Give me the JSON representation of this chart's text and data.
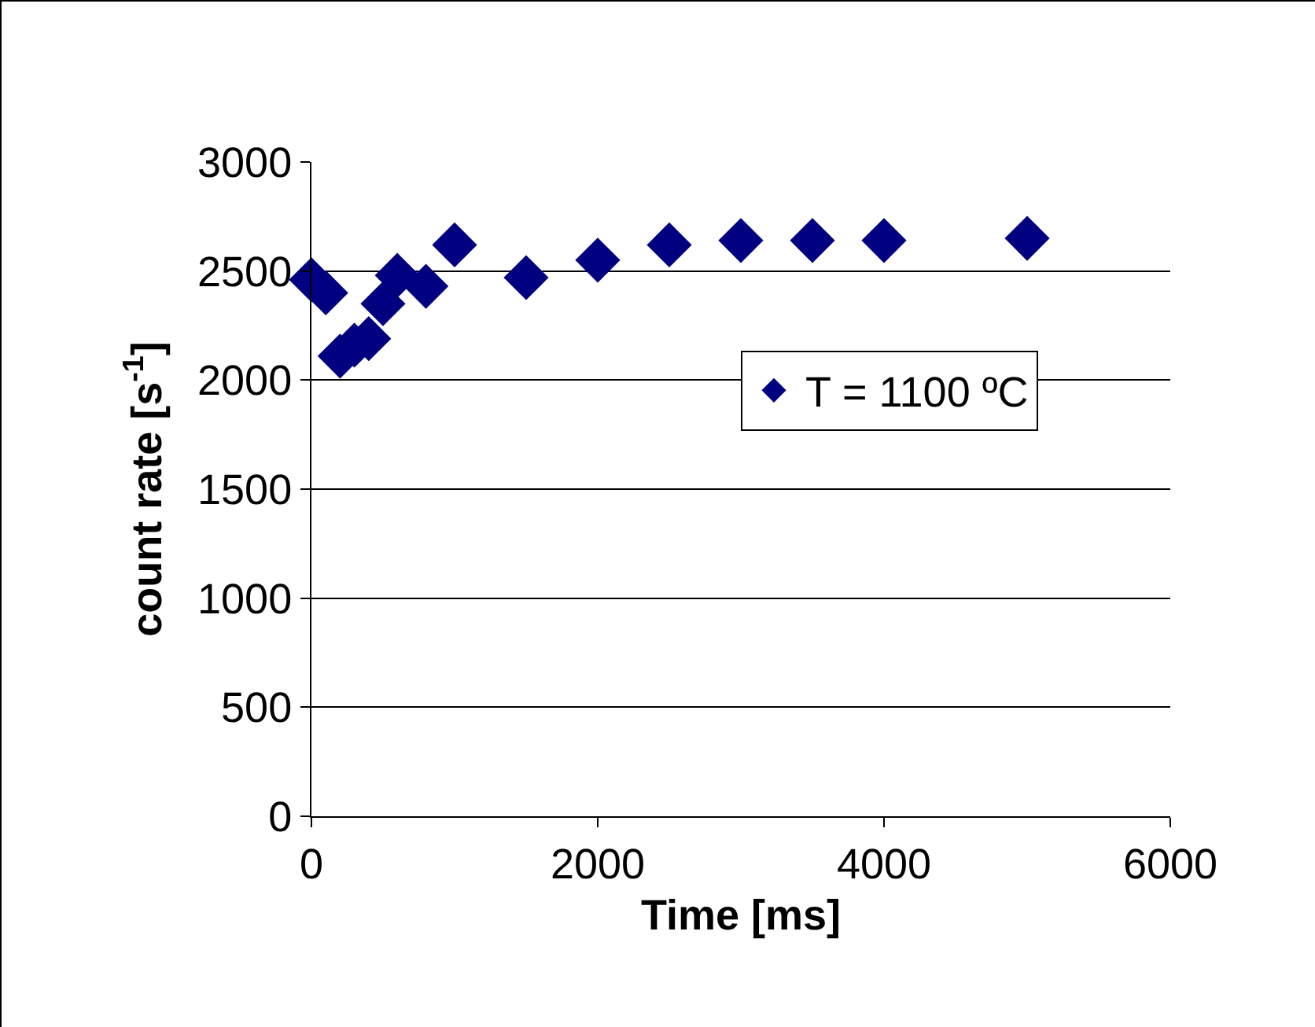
{
  "chart_data": {
    "type": "scatter",
    "xlabel": "Time [ms]",
    "ylabel": "count rate [s$^{-1}$]",
    "x": [
      0,
      100,
      200,
      300,
      400,
      500,
      600,
      800,
      1000,
      1500,
      2000,
      2500,
      3000,
      3500,
      4000,
      5000
    ],
    "series": [
      {
        "name": "T = 1100 ºC",
        "color": "#000080",
        "values": [
          2460,
          2400,
          2110,
          2160,
          2190,
          2350,
          2480,
          2430,
          2620,
          2470,
          2550,
          2620,
          2640,
          2640,
          2640,
          2650
        ]
      }
    ],
    "xlim": [
      0,
      6000
    ],
    "xticks": [
      0,
      2000,
      4000,
      6000
    ],
    "ylim": [
      0,
      3000
    ],
    "yticks": [
      0,
      500,
      1000,
      1500,
      2000,
      2500,
      3000
    ],
    "grid": "y",
    "legend": "right",
    "marker": "diamond"
  }
}
